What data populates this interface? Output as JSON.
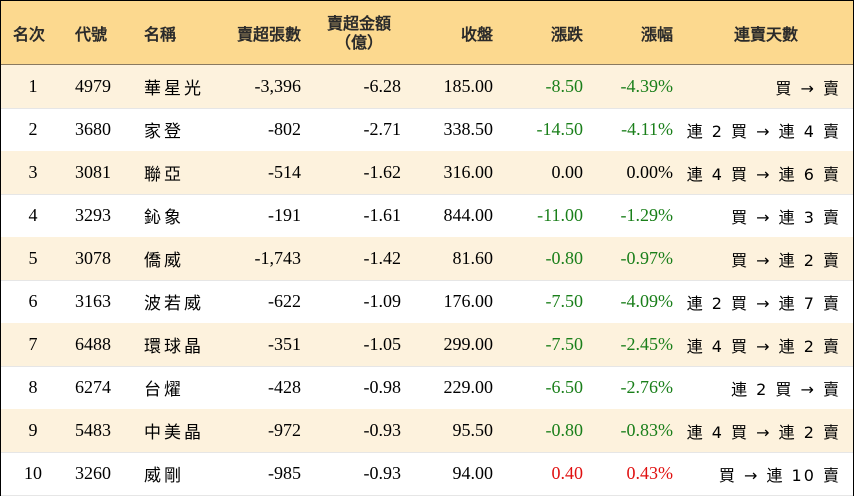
{
  "headers": {
    "rank": "名次",
    "code": "代號",
    "name": "名稱",
    "sell_volume": "賣超張數",
    "sell_amount_line1": "賣超金額",
    "sell_amount_line2": "（億）",
    "close": "收盤",
    "change": "漲跌",
    "pct": "漲幅",
    "streak": "連賣天數"
  },
  "colors": {
    "header_bg": "#fcd98f",
    "alt_row_bg": "#fdf2dd",
    "down": "#1a7f1a",
    "up": "#e01010"
  },
  "rows": [
    {
      "rank": "1",
      "code": "4979",
      "name": "華星光",
      "volume": "-3,396",
      "amount": "-6.28",
      "close": "185.00",
      "change": "-8.50",
      "pct": "-4.39%",
      "trend": "down",
      "streak": "買 → 賣"
    },
    {
      "rank": "2",
      "code": "3680",
      "name": "家登",
      "volume": "-802",
      "amount": "-2.71",
      "close": "338.50",
      "change": "-14.50",
      "pct": "-4.11%",
      "trend": "down",
      "streak": "連 2 買 → 連 4 賣"
    },
    {
      "rank": "3",
      "code": "3081",
      "name": "聯亞",
      "volume": "-514",
      "amount": "-1.62",
      "close": "316.00",
      "change": "0.00",
      "pct": "0.00%",
      "trend": "zero",
      "streak": "連 4 買 → 連 6 賣"
    },
    {
      "rank": "4",
      "code": "3293",
      "name": "鈊象",
      "volume": "-191",
      "amount": "-1.61",
      "close": "844.00",
      "change": "-11.00",
      "pct": "-1.29%",
      "trend": "down",
      "streak": "買 → 連 3 賣"
    },
    {
      "rank": "5",
      "code": "3078",
      "name": "僑威",
      "volume": "-1,743",
      "amount": "-1.42",
      "close": "81.60",
      "change": "-0.80",
      "pct": "-0.97%",
      "trend": "down",
      "streak": "買 → 連 2 賣"
    },
    {
      "rank": "6",
      "code": "3163",
      "name": "波若威",
      "volume": "-622",
      "amount": "-1.09",
      "close": "176.00",
      "change": "-7.50",
      "pct": "-4.09%",
      "trend": "down",
      "streak": "連 2 買 → 連 7 賣"
    },
    {
      "rank": "7",
      "code": "6488",
      "name": "環球晶",
      "volume": "-351",
      "amount": "-1.05",
      "close": "299.00",
      "change": "-7.50",
      "pct": "-2.45%",
      "trend": "down",
      "streak": "連 4 買 → 連 2 賣"
    },
    {
      "rank": "8",
      "code": "6274",
      "name": "台燿",
      "volume": "-428",
      "amount": "-0.98",
      "close": "229.00",
      "change": "-6.50",
      "pct": "-2.76%",
      "trend": "down",
      "streak": "連 2 買 → 賣"
    },
    {
      "rank": "9",
      "code": "5483",
      "name": "中美晶",
      "volume": "-972",
      "amount": "-0.93",
      "close": "95.50",
      "change": "-0.80",
      "pct": "-0.83%",
      "trend": "down",
      "streak": "連 4 買 → 連 2 賣"
    },
    {
      "rank": "10",
      "code": "3260",
      "name": "威剛",
      "volume": "-985",
      "amount": "-0.93",
      "close": "94.00",
      "change": "0.40",
      "pct": "0.43%",
      "trend": "up",
      "streak": "買 → 連 10 賣"
    }
  ]
}
